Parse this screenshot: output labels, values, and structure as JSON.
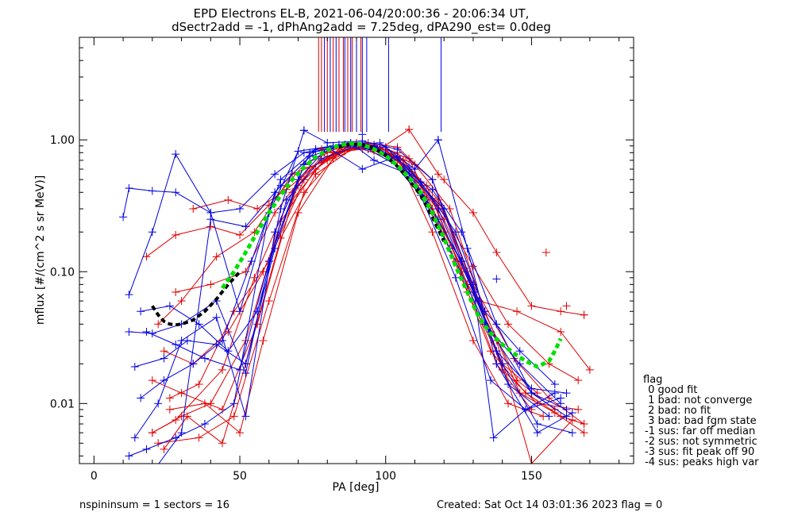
{
  "chart_data": {
    "type": "line",
    "title": "EPD Electrons EL-B, 2021-06-04/20:00:36 - 20:06:34 UT,",
    "subtitle": "dSectr2add = -1, dPhAng2add = 7.25deg, dPA290_est=   0.0deg",
    "xlabel": "PA [deg]",
    "ylabel": "mflux [#/(cm^2 s sr MeV)]",
    "xlim": [
      -5,
      185
    ],
    "ylim": [
      0.0035,
      6.0
    ],
    "yscale": "log",
    "xticks": [
      0,
      50,
      100,
      150
    ],
    "xtick_labels": [
      "0",
      "50",
      "100",
      "150"
    ],
    "yticks": [
      0.01,
      0.1,
      1.0
    ],
    "ytick_labels": [
      "0.01",
      "0.10",
      "1.00"
    ],
    "grid": false,
    "colors": {
      "red": "#e00000",
      "blue": "#0000e0",
      "green": "#00e000",
      "black": "#000000"
    },
    "series": [
      {
        "color": "#e00000",
        "x": [
          20,
          28,
          44,
          55,
          68,
          79,
          92,
          104,
          116,
          128,
          138,
          150
        ],
        "y": [
          0.006,
          0.0075,
          0.018,
          0.09,
          0.4,
          0.8,
          0.85,
          0.7,
          0.36,
          0.08,
          0.02,
          0.009
        ]
      },
      {
        "color": "#e00000",
        "x": [
          22,
          30,
          42,
          55,
          68,
          80,
          92,
          104,
          116,
          128,
          140,
          152
        ],
        "y": [
          0.04,
          0.06,
          0.13,
          0.2,
          0.55,
          0.7,
          0.95,
          0.8,
          0.3,
          0.07,
          0.02,
          0.012
        ]
      },
      {
        "color": "#e00000",
        "x": [
          24,
          32,
          44,
          52,
          64,
          76,
          90,
          104,
          116,
          130,
          142,
          154
        ],
        "y": [
          0.0045,
          0.008,
          0.005,
          0.02,
          0.18,
          0.55,
          0.9,
          0.75,
          0.2,
          0.03,
          0.01,
          0.008
        ]
      },
      {
        "color": "#e00000",
        "x": [
          26,
          36,
          48,
          60,
          72,
          84,
          96,
          108,
          120,
          132,
          145,
          158
        ],
        "y": [
          0.011,
          0.014,
          0.05,
          0.12,
          0.5,
          0.85,
          0.9,
          0.6,
          0.25,
          0.06,
          0.015,
          0.009
        ]
      },
      {
        "color": "#e00000",
        "x": [
          20,
          30,
          40,
          52,
          64,
          76,
          88,
          100,
          112,
          124,
          136,
          148,
          160,
          168
        ],
        "y": [
          0.006,
          0.008,
          0.01,
          0.03,
          0.24,
          0.6,
          0.92,
          0.85,
          0.45,
          0.12,
          0.025,
          0.012,
          0.008,
          0.007
        ]
      },
      {
        "color": "#e00000",
        "x": [
          28,
          40,
          52,
          62,
          74,
          86,
          98,
          108,
          120,
          132,
          145,
          160,
          170
        ],
        "y": [
          0.07,
          0.08,
          0.1,
          0.28,
          0.62,
          0.82,
          0.88,
          0.72,
          0.2,
          0.06,
          0.05,
          0.035,
          0.018
        ]
      },
      {
        "color": "#e00000",
        "x": [
          34,
          46,
          56,
          66,
          78,
          90,
          102,
          114,
          126,
          138,
          150,
          164
        ],
        "y": [
          0.3,
          0.35,
          0.3,
          0.42,
          0.7,
          0.9,
          0.78,
          0.45,
          0.1,
          0.03,
          0.0035,
          0.0075
        ]
      },
      {
        "color": "#e00000",
        "x": [
          20,
          30,
          44,
          56,
          68,
          80,
          90,
          98,
          108,
          118,
          130,
          138,
          150,
          160,
          168
        ],
        "y": [
          0.015,
          0.012,
          0.009,
          0.04,
          0.35,
          0.75,
          0.95,
          0.85,
          1.2,
          0.55,
          0.28,
          0.14,
          0.055,
          0.05,
          0.047
        ]
      },
      {
        "color": "#e00000",
        "x": [
          26,
          38,
          50,
          58,
          70,
          82,
          94,
          104,
          116,
          128,
          140,
          152,
          166
        ],
        "y": [
          0.009,
          0.01,
          0.006,
          0.03,
          0.28,
          0.72,
          0.95,
          0.88,
          0.5,
          0.1,
          0.018,
          0.01,
          0.009
        ]
      },
      {
        "color": "#e00000",
        "x": [
          22,
          36,
          48,
          60,
          72,
          84,
          96,
          110,
          122,
          134,
          146,
          158,
          168
        ],
        "y": [
          0.005,
          0.0055,
          0.008,
          0.06,
          0.4,
          0.8,
          0.9,
          0.65,
          0.3,
          0.05,
          0.012,
          0.0085,
          0.006
        ]
      },
      {
        "color": "#e00000",
        "x": [
          18,
          28,
          40,
          50,
          60,
          72,
          84,
          96,
          106,
          118,
          130,
          142,
          156,
          166
        ],
        "y": [
          0.13,
          0.19,
          0.22,
          0.19,
          0.32,
          0.65,
          0.88,
          0.92,
          0.7,
          0.32,
          0.11,
          0.04,
          0.02,
          0.015
        ]
      },
      {
        "color": "#e00000",
        "x": [
          24,
          34,
          46,
          58,
          70,
          82,
          94,
          106,
          118,
          130,
          144,
          156,
          168
        ],
        "y": [
          0.025,
          0.02,
          0.035,
          0.1,
          0.45,
          0.8,
          0.9,
          0.7,
          0.35,
          0.08,
          0.022,
          0.011,
          0.007
        ]
      },
      {
        "color": "#0000e0",
        "x": [
          10,
          12,
          20,
          28,
          40,
          50,
          62,
          72,
          82,
          92,
          102,
          112,
          122,
          134,
          146,
          160
        ],
        "y": [
          0.26,
          0.43,
          0.41,
          0.4,
          0.28,
          0.3,
          0.55,
          0.8,
          0.9,
          0.95,
          0.7,
          0.4,
          0.15,
          0.04,
          0.02,
          0.01
        ]
      },
      {
        "color": "#0000e0",
        "x": [
          12,
          20,
          28,
          40,
          50,
          62,
          74,
          86,
          96,
          108,
          118,
          130,
          137,
          148,
          158
        ],
        "y": [
          0.067,
          0.2,
          0.78,
          0.28,
          0.05,
          0.4,
          0.75,
          0.92,
          0.9,
          0.55,
          0.25,
          0.08,
          0.0055,
          0.009,
          0.012
        ]
      },
      {
        "color": "#0000e0",
        "x": [
          12,
          20,
          30,
          42,
          52,
          64,
          72,
          80,
          92,
          104,
          116,
          126,
          136,
          150,
          162
        ],
        "y": [
          0.035,
          0.034,
          0.04,
          0.06,
          0.017,
          0.3,
          1.18,
          0.95,
          0.98,
          0.85,
          0.5,
          0.12,
          0.035,
          0.012,
          0.008
        ]
      },
      {
        "color": "#0000e0",
        "x": [
          14,
          22,
          30,
          42,
          52,
          62,
          74,
          86,
          98,
          110,
          118,
          128,
          138,
          152,
          164
        ],
        "y": [
          0.0055,
          0.01,
          0.03,
          0.045,
          0.008,
          0.2,
          0.8,
          0.9,
          0.95,
          0.6,
          1.0,
          0.15,
          0.02,
          0.006,
          0.0085
        ]
      },
      {
        "color": "#0000e0",
        "x": [
          16,
          24,
          34,
          44,
          54,
          64,
          76,
          88,
          96,
          108,
          120,
          132,
          142,
          156
        ],
        "y": [
          0.011,
          0.015,
          0.02,
          0.03,
          0.12,
          0.5,
          0.85,
          0.95,
          0.7,
          0.55,
          0.3,
          0.06,
          0.014,
          0.008
        ]
      },
      {
        "color": "#0000e0",
        "x": [
          12,
          18,
          28,
          38,
          48,
          60,
          70,
          82,
          94,
          106,
          116,
          126,
          138,
          150,
          162
        ],
        "y": [
          0.004,
          0.0045,
          0.0055,
          0.007,
          0.01,
          0.28,
          0.82,
          0.9,
          0.85,
          0.6,
          0.42,
          0.2,
          0.04,
          0.012,
          0.009
        ]
      },
      {
        "color": "#0000e0",
        "x": [
          16,
          26,
          36,
          46,
          56,
          66,
          78,
          90,
          100,
          112,
          124,
          134,
          146,
          158
        ],
        "y": [
          0.05,
          0.055,
          0.04,
          0.025,
          0.05,
          0.35,
          0.72,
          0.9,
          0.88,
          0.48,
          0.2,
          0.05,
          0.025,
          0.014
        ]
      },
      {
        "color": "#0000e0",
        "x": [
          14,
          24,
          32,
          42,
          52,
          62,
          72,
          84,
          96,
          108,
          118,
          130,
          140,
          152,
          164
        ],
        "y": [
          0.019,
          0.022,
          0.03,
          0.028,
          0.02,
          0.15,
          0.65,
          0.92,
          0.9,
          0.62,
          0.3,
          0.07,
          0.02,
          0.007,
          0.006
        ]
      },
      {
        "color": "#0000e0",
        "x": [
          20,
          30,
          40,
          52,
          64,
          76,
          88,
          100,
          112,
          124,
          136,
          148,
          160
        ],
        "y": [
          0.003,
          0.006,
          0.25,
          0.22,
          0.45,
          0.82,
          0.94,
          0.78,
          0.38,
          0.09,
          0.015,
          0.009,
          0.011
        ]
      },
      {
        "color": "#0000e0",
        "x": [
          18,
          28,
          38,
          50,
          60,
          70,
          80,
          92,
          104,
          114,
          126,
          138,
          150,
          162
        ],
        "y": [
          0.035,
          0.028,
          0.022,
          0.018,
          0.12,
          0.5,
          0.88,
          0.6,
          0.75,
          0.35,
          0.12,
          0.025,
          0.013,
          0.012
        ]
      }
    ],
    "marker_points": [
      {
        "color": "#e00000",
        "x": [
          78,
          86,
          96,
          108,
          120,
          130,
          155,
          162,
          168
        ],
        "y": [
          0.85,
          0.9,
          0.82,
          1.2,
          0.5,
          0.28,
          0.14,
          0.055,
          0.047
        ]
      },
      {
        "color": "#0000e0",
        "x": [
          72,
          92,
          118,
          138
        ],
        "y": [
          1.18,
          1.1,
          1.0,
          0.088
        ]
      }
    ],
    "spikes": {
      "red_x": [
        77,
        78,
        80,
        82,
        84,
        85.5,
        87,
        88.5,
        90,
        91.5
      ],
      "blue_x": [
        79,
        81,
        83,
        86,
        88,
        90,
        92,
        93.5,
        101,
        119
      ],
      "y_from": 1.15
    },
    "fit_black": {
      "x": [
        20,
        22,
        24,
        26,
        28,
        30,
        34,
        38,
        42,
        46,
        50
      ],
      "y": [
        0.055,
        0.047,
        0.042,
        0.04,
        0.0395,
        0.04,
        0.043,
        0.05,
        0.062,
        0.08,
        0.1
      ]
    },
    "fit_green": {
      "x": [
        44,
        48,
        52,
        56,
        60,
        64,
        68,
        72,
        76,
        80,
        84,
        88,
        92,
        96,
        100,
        104,
        108,
        112,
        116,
        120,
        124,
        128,
        132,
        136,
        140,
        144,
        148,
        152,
        156,
        158,
        160
      ],
      "y": [
        0.075,
        0.1,
        0.14,
        0.2,
        0.28,
        0.38,
        0.5,
        0.62,
        0.74,
        0.84,
        0.91,
        0.94,
        0.92,
        0.85,
        0.76,
        0.64,
        0.52,
        0.4,
        0.28,
        0.18,
        0.11,
        0.07,
        0.045,
        0.034,
        0.028,
        0.024,
        0.021,
        0.019,
        0.021,
        0.025,
        0.031
      ]
    },
    "fit_black_right": {
      "x": [
        84,
        88,
        92,
        96,
        100,
        104,
        108,
        112,
        116,
        120
      ],
      "y": [
        0.88,
        0.93,
        0.92,
        0.86,
        0.76,
        0.63,
        0.5,
        0.38,
        0.26,
        0.17
      ]
    }
  },
  "footer": {
    "left": "nspininsum =  1  sectors = 16",
    "right": "Created: Sat Oct 14 03:01:36 2023   flag = 0"
  },
  "legend": {
    "title": "flag",
    "items": [
      " 0 good fit",
      " 1 bad: not converge",
      " 2 bad: no fit",
      " 3 bad: bad fgm state",
      "-1 sus: far off median",
      "-2 sus: not symmetric",
      "-3 sus: fit peak off 90",
      "-4 sus: peaks high var"
    ]
  }
}
